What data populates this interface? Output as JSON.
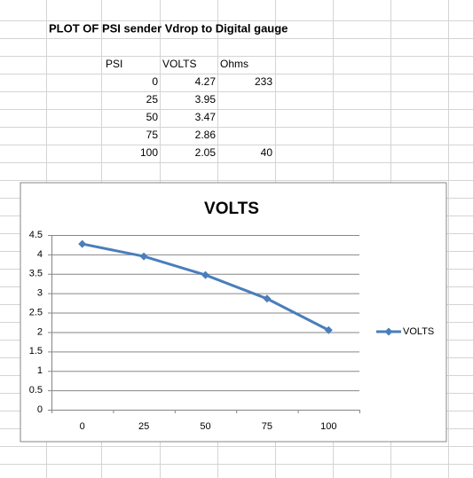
{
  "sheet": {
    "title": "PLOT OF PSI sender Vdrop to Digital gauge",
    "headers": [
      "PSI",
      "VOLTS",
      "Ohms"
    ],
    "rows": [
      [
        0,
        4.27,
        233
      ],
      [
        25,
        3.95,
        null
      ],
      [
        50,
        3.47,
        null
      ],
      [
        75,
        2.86,
        null
      ],
      [
        100,
        2.05,
        40
      ]
    ]
  },
  "chart_data": {
    "type": "line",
    "title": "VOLTS",
    "categories": [
      0,
      25,
      50,
      75,
      100
    ],
    "series": [
      {
        "name": "VOLTS",
        "color": "#4a7ebb",
        "values": [
          4.27,
          3.95,
          3.47,
          2.86,
          2.05
        ]
      }
    ],
    "ylim": [
      0,
      4.5
    ],
    "yticks": [
      0,
      0.5,
      1,
      1.5,
      2,
      2.5,
      3,
      3.5,
      4,
      4.5
    ],
    "grid": true,
    "legend": "right"
  }
}
